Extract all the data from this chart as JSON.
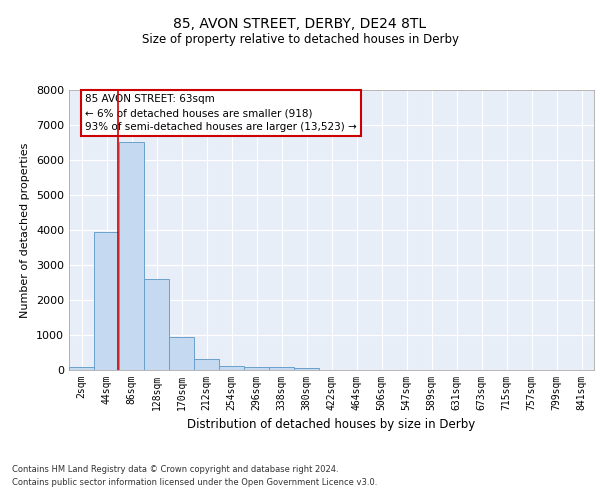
{
  "title1": "85, AVON STREET, DERBY, DE24 8TL",
  "title2": "Size of property relative to detached houses in Derby",
  "xlabel": "Distribution of detached houses by size in Derby",
  "ylabel": "Number of detached properties",
  "bar_labels": [
    "2sqm",
    "44sqm",
    "86sqm",
    "128sqm",
    "170sqm",
    "212sqm",
    "254sqm",
    "296sqm",
    "338sqm",
    "380sqm",
    "422sqm",
    "464sqm",
    "506sqm",
    "547sqm",
    "589sqm",
    "631sqm",
    "673sqm",
    "715sqm",
    "757sqm",
    "799sqm",
    "841sqm"
  ],
  "bar_values": [
    80,
    3950,
    6500,
    2600,
    950,
    310,
    120,
    100,
    80,
    55,
    0,
    0,
    0,
    0,
    0,
    0,
    0,
    0,
    0,
    0,
    0
  ],
  "bar_color": "#c5d9f0",
  "bar_edge_color": "#6aa0cc",
  "background_color": "#e8eef8",
  "grid_color": "#ffffff",
  "red_line_color": "#cc0000",
  "annotation_text": "85 AVON STREET: 63sqm\n← 6% of detached houses are smaller (918)\n93% of semi-detached houses are larger (13,523) →",
  "annotation_box_color": "#ffffff",
  "annotation_box_edge": "#cc0000",
  "footer1": "Contains HM Land Registry data © Crown copyright and database right 2024.",
  "footer2": "Contains public sector information licensed under the Open Government Licence v3.0.",
  "ylim": [
    0,
    8000
  ],
  "yticks": [
    0,
    1000,
    2000,
    3000,
    4000,
    5000,
    6000,
    7000,
    8000
  ]
}
